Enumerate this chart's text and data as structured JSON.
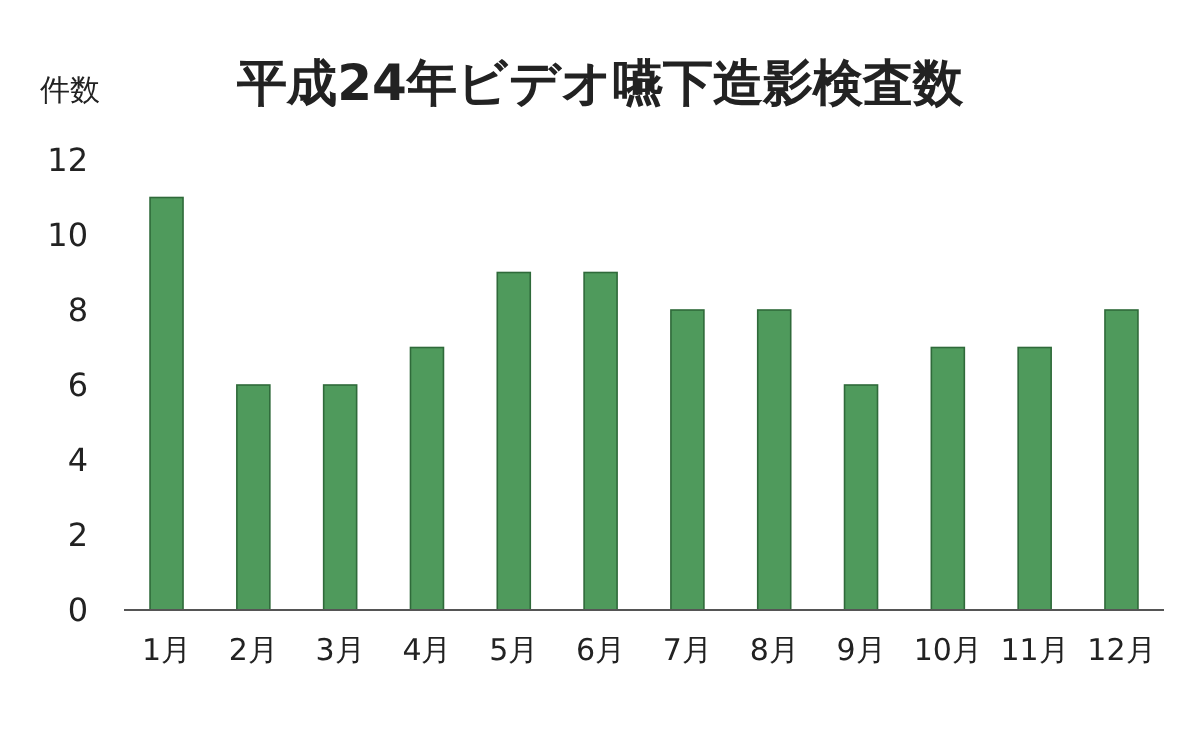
{
  "chart_data": {
    "type": "bar",
    "title": "平成24年ビデオ嚥下造影検査数",
    "ylabel": "件数",
    "categories": [
      "1月",
      "2月",
      "3月",
      "4月",
      "5月",
      "6月",
      "7月",
      "8月",
      "9月",
      "10月",
      "11月",
      "12月"
    ],
    "values": [
      11,
      6,
      6,
      7,
      9,
      9,
      8,
      8,
      6,
      7,
      7,
      8
    ],
    "color": "#4f9a5c",
    "ylim": [
      0,
      12
    ],
    "yticks": [
      0,
      2,
      4,
      6,
      8,
      10,
      12
    ],
    "grid": false
  }
}
